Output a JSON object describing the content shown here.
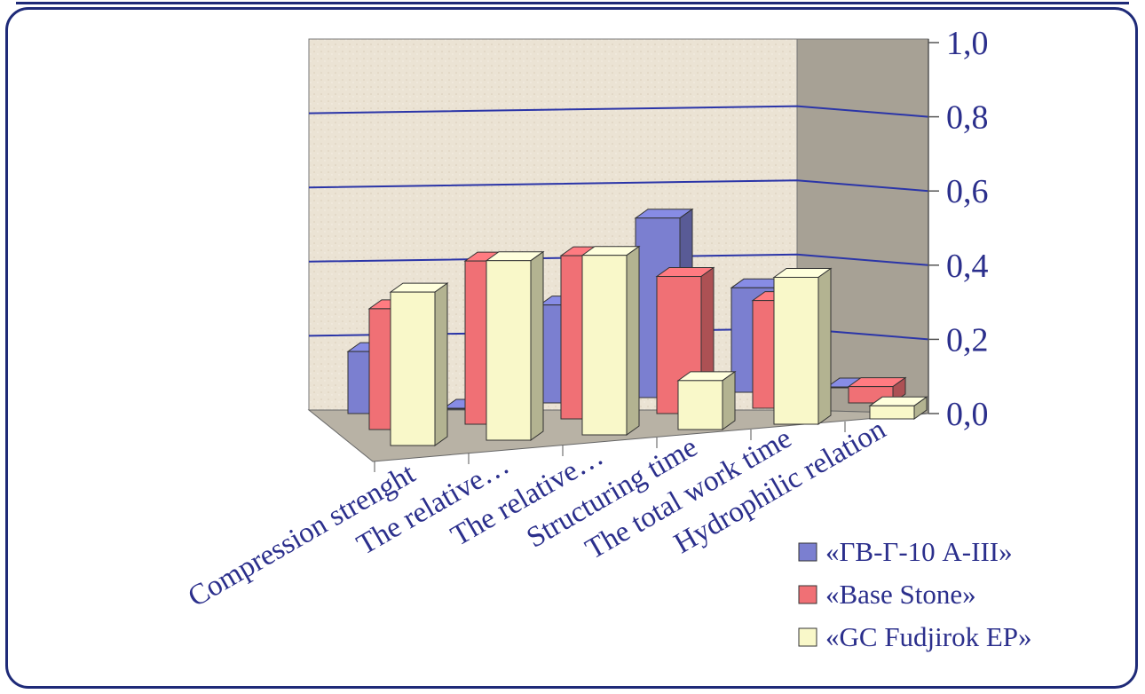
{
  "chart_data": {
    "type": "bar",
    "title": "",
    "xlabel": "",
    "ylabel": "",
    "categories": [
      "Compression strenght",
      "The relative…",
      "The relative…",
      "Structuring time",
      "The total work time",
      "Hydrophilic relation"
    ],
    "series": [
      {
        "name": "«ГВ-Г-10 А-III»",
        "values": [
          0.19,
          0.0,
          0.3,
          0.55,
          0.32,
          0.0
        ],
        "color": "#7b7fd0"
      },
      {
        "name": "«Base Stone»",
        "values": [
          0.37,
          0.5,
          0.5,
          0.42,
          0.33,
          0.05
        ],
        "color": "#f07075"
      },
      {
        "name": "«GC Fudjirok EP»",
        "values": [
          0.47,
          0.55,
          0.55,
          0.15,
          0.45,
          0.04
        ],
        "color": "#f9f8c9"
      }
    ],
    "ylim": [
      0,
      1.0
    ],
    "yticks": [
      "0,0",
      "0,2",
      "0,4",
      "0,6",
      "0,8",
      "1,0"
    ],
    "grid": true,
    "legend_position": "bottom-right"
  }
}
